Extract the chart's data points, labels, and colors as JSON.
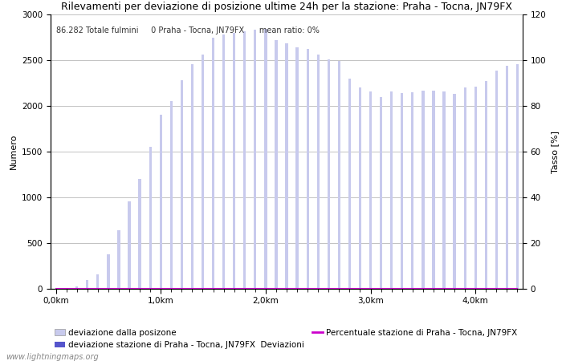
{
  "title": "Rilevamenti per deviazione di posizione ultime 24h per la stazione: Praha - Tocna, JN79FX",
  "annotation": "86.282 Totale fulmini     0 Praha - Tocna, JN79FX      mean ratio: 0%",
  "xlabel_ticks": [
    "0,0km",
    "1,0km",
    "2,0km",
    "3,0km",
    "4,0km"
  ],
  "xlabel_tick_positions": [
    0,
    10,
    20,
    30,
    40
  ],
  "ylabel_left": "Numero",
  "ylabel_right": "Tasso [%]",
  "ylim_left": [
    0,
    3000
  ],
  "ylim_right": [
    0,
    120
  ],
  "yticks_left": [
    0,
    500,
    1000,
    1500,
    2000,
    2500,
    3000
  ],
  "yticks_right": [
    0,
    20,
    40,
    60,
    80,
    100,
    120
  ],
  "bar_color_light": "#c8caed",
  "bar_color_dark": "#5555cc",
  "line_color": "#cc00cc",
  "watermark": "www.lightningmaps.org",
  "legend_label1": "deviazione dalla posizone",
  "legend_label2": "deviazione stazione di Praha - Tocna, JN79FX",
  "legend_extra": "Deviazioni",
  "legend_label3": "Percentuale stazione di Praha - Tocna, JN79FX",
  "bar_values": [
    0,
    5,
    30,
    100,
    160,
    380,
    640,
    960,
    1200,
    1550,
    1900,
    2050,
    2280,
    2460,
    2560,
    2750,
    2780,
    2800,
    2820,
    2830,
    2840,
    2720,
    2680,
    2640,
    2620,
    2560,
    2510,
    2490,
    2300,
    2200,
    2160,
    2100,
    2160,
    2140,
    2150,
    2170,
    2170,
    2160,
    2130,
    2200,
    2210,
    2270,
    2390,
    2440,
    2460
  ],
  "dark_bar_values": [
    0,
    0,
    0,
    0,
    0,
    0,
    0,
    0,
    0,
    0,
    0,
    0,
    0,
    0,
    0,
    0,
    0,
    0,
    0,
    0,
    0,
    0,
    0,
    0,
    0,
    0,
    0,
    0,
    0,
    0,
    0,
    0,
    0,
    0,
    0,
    0,
    0,
    0,
    0,
    0,
    0,
    0,
    0,
    0,
    0
  ],
  "grid_color": "#aaaaaa",
  "background_color": "#ffffff",
  "title_fontsize": 9,
  "axis_fontsize": 8,
  "tick_fontsize": 7.5,
  "annotation_fontsize": 7,
  "bar_width": 0.25,
  "n_bars": 45
}
